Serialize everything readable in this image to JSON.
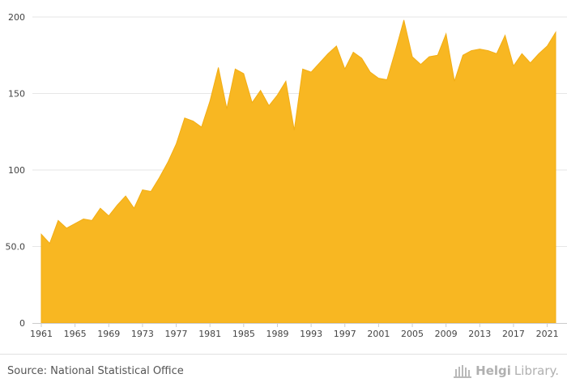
{
  "chart_data": {
    "type": "area",
    "title": "",
    "xlabel": "",
    "ylabel": "",
    "xlim": [
      1961,
      2022
    ],
    "ylim": [
      0,
      200
    ],
    "grid": true,
    "fill_color": "#f8b722",
    "grid_color": "#e6e6e6",
    "y_ticks": [
      {
        "value": 0,
        "label": "0"
      },
      {
        "value": 50,
        "label": "50.0"
      },
      {
        "value": 100,
        "label": "100"
      },
      {
        "value": 150,
        "label": "150"
      },
      {
        "value": 200,
        "label": "200"
      }
    ],
    "x_ticks": [
      {
        "value": 1961,
        "label": "1961"
      },
      {
        "value": 1965,
        "label": "1965"
      },
      {
        "value": 1969,
        "label": "1969"
      },
      {
        "value": 1973,
        "label": "1973"
      },
      {
        "value": 1977,
        "label": "1977"
      },
      {
        "value": 1981,
        "label": "1981"
      },
      {
        "value": 1985,
        "label": "1985"
      },
      {
        "value": 1989,
        "label": "1989"
      },
      {
        "value": 1993,
        "label": "1993"
      },
      {
        "value": 1997,
        "label": "1997"
      },
      {
        "value": 2001,
        "label": "2001"
      },
      {
        "value": 2005,
        "label": "2005"
      },
      {
        "value": 2009,
        "label": "2009"
      },
      {
        "value": 2013,
        "label": "2013"
      },
      {
        "value": 2017,
        "label": "2017"
      },
      {
        "value": 2021,
        "label": "2021"
      }
    ],
    "x": [
      1961,
      1962,
      1963,
      1964,
      1965,
      1966,
      1967,
      1968,
      1969,
      1970,
      1971,
      1972,
      1973,
      1974,
      1975,
      1976,
      1977,
      1978,
      1979,
      1980,
      1981,
      1982,
      1983,
      1984,
      1985,
      1986,
      1987,
      1988,
      1989,
      1990,
      1991,
      1992,
      1993,
      1994,
      1995,
      1996,
      1997,
      1998,
      1999,
      2000,
      2001,
      2002,
      2003,
      2004,
      2005,
      2006,
      2007,
      2008,
      2009,
      2010,
      2011,
      2012,
      2013,
      2014,
      2015,
      2016,
      2017,
      2018,
      2019,
      2020,
      2021,
      2022
    ],
    "series": [
      {
        "values": [
          58,
          52,
          67,
          62,
          65,
          68,
          67,
          75,
          70,
          77,
          83,
          75,
          87,
          86,
          95,
          105,
          117,
          134,
          132,
          128,
          145,
          167,
          140,
          166,
          163,
          144,
          152,
          142,
          149,
          158,
          126,
          166,
          164,
          170,
          176,
          181,
          166,
          177,
          173,
          164,
          160,
          159,
          178,
          198,
          174,
          169,
          174,
          175,
          189,
          158,
          175,
          178,
          179,
          178,
          176,
          188,
          168,
          176,
          170,
          176,
          181,
          190
        ]
      }
    ]
  },
  "footer": {
    "source": "Source: National Statistical Office",
    "brand_part1": "Helgi",
    "brand_part2": "Library."
  }
}
